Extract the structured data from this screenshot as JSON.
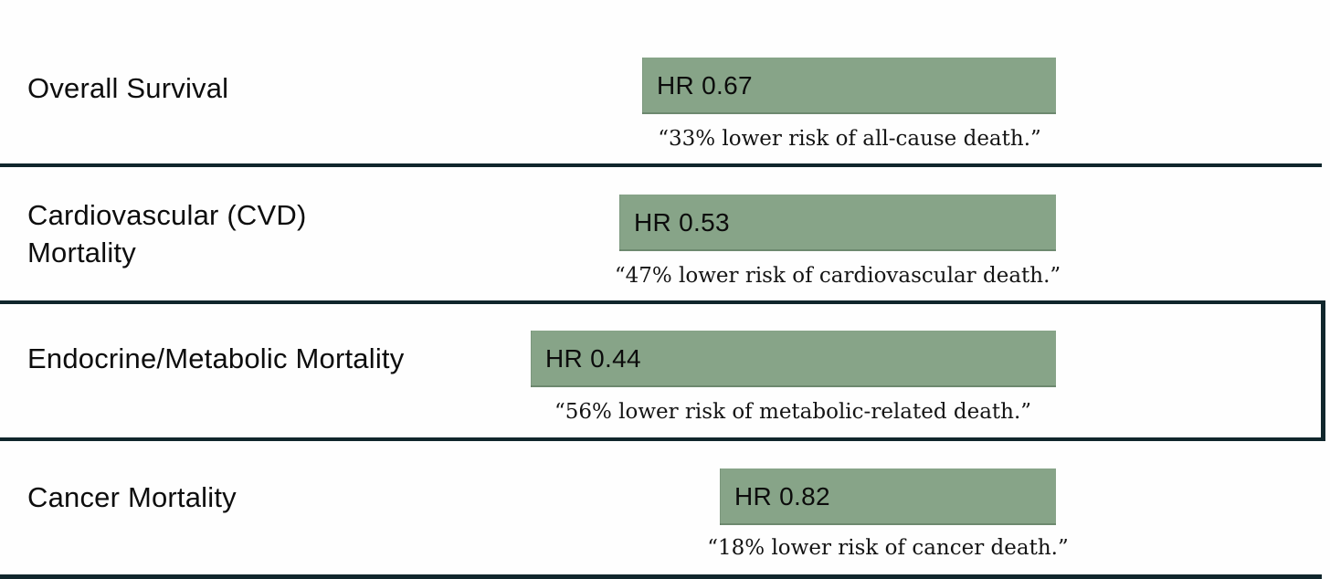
{
  "chart_data": {
    "type": "bar",
    "orientation": "horizontal",
    "value_label": "HR",
    "categories": [
      "Overall Survival",
      "Cardiovascular (CVD) Mortality",
      "Endocrine/Metabolic Mortality",
      "Cancer Mortality"
    ],
    "values": [
      0.67,
      0.53,
      0.44,
      0.82
    ],
    "rows": [
      {
        "label": "Overall Survival",
        "hr": 0.67,
        "hr_label": "HR 0.67",
        "annotation": "“33% lower risk of all-cause death.”"
      },
      {
        "label": "Cardiovascular (CVD)\nMortality",
        "hr": 0.53,
        "hr_label": "HR 0.53",
        "annotation": "“47% lower risk of cardiovascular death.”"
      },
      {
        "label": "Endocrine/Metabolic Mortality",
        "hr": 0.44,
        "hr_label": "HR 0.44",
        "annotation": "“56% lower risk of metabolic-related death.”"
      },
      {
        "label": "Cancer Mortality",
        "hr": 0.82,
        "hr_label": "HR 0.82",
        "annotation": "“18% lower risk of cancer death.”"
      }
    ],
    "colors": {
      "bar_fill": "#87a488",
      "divider": "#10262c",
      "text": "#0d0d0d"
    },
    "layout": {
      "bars_right_aligned": true,
      "legend": "none",
      "grid": "off"
    }
  }
}
